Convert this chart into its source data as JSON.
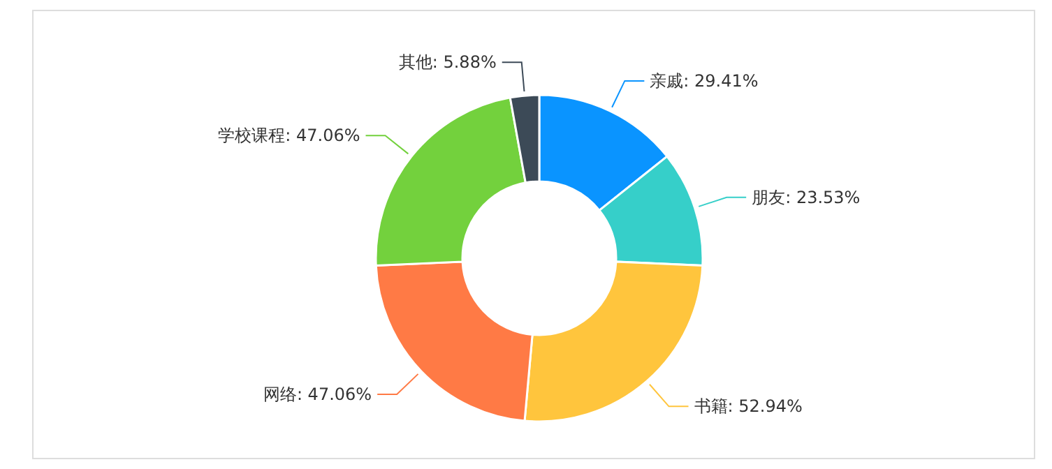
{
  "chart_data": {
    "type": "donut",
    "categories": [
      "亲戚",
      "朋友",
      "书籍",
      "网络",
      "学校课程",
      "其他"
    ],
    "values": [
      29.41,
      23.53,
      52.94,
      47.06,
      47.06,
      5.88
    ],
    "value_labels": [
      "29.41%",
      "23.53%",
      "52.94%",
      "47.06%",
      "47.06%",
      "5.88%"
    ],
    "colors": [
      "#0a94ff",
      "#36cfc9",
      "#ffc53d",
      "#ff7a45",
      "#73d13d",
      "#3c4a57"
    ]
  }
}
